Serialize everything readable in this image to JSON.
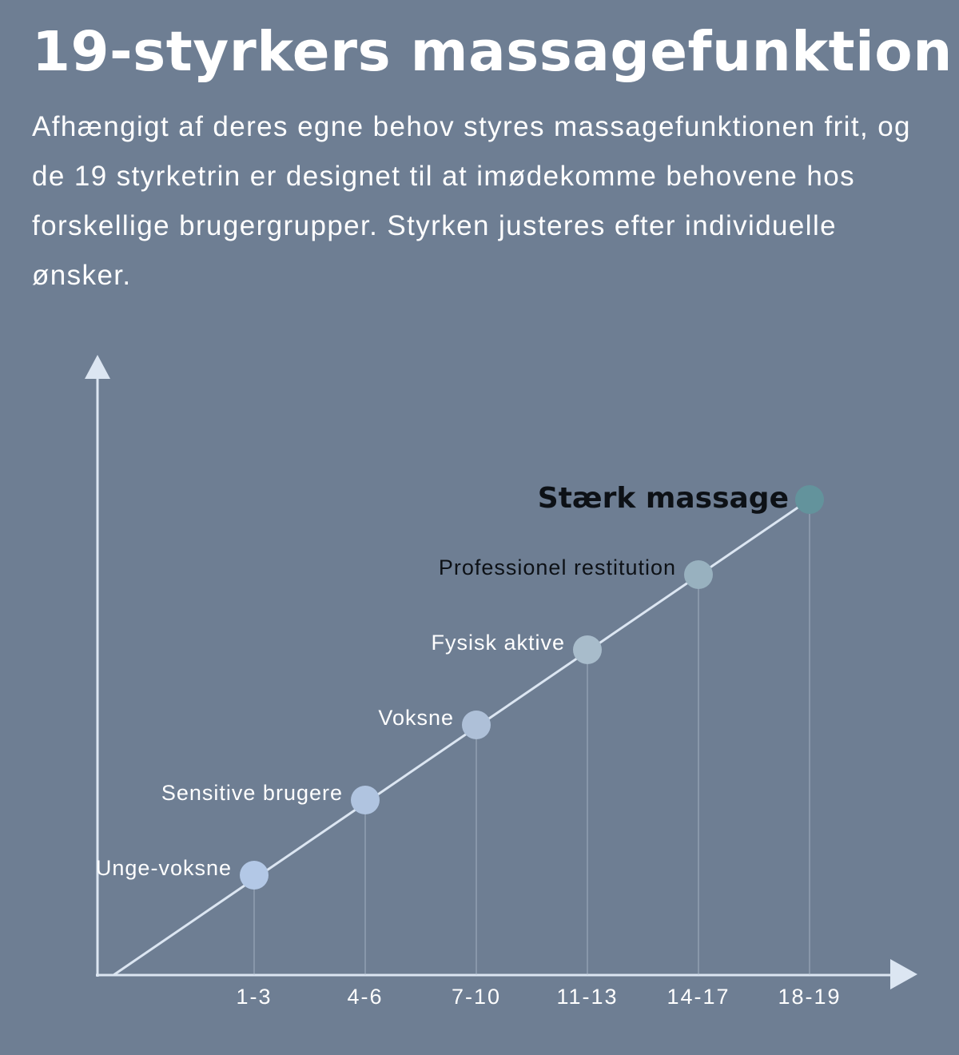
{
  "title": "19-styrkers massagefunktion",
  "description": "Afhængigt af deres egne behov styres massagefunktionen frit, og de 19 styrketrin er designet til at imødekomme behovene hos forskellige brugergrupper. Styrken justeres efter individuelle ønsker.",
  "chart_data": {
    "type": "line",
    "categories": [
      "1-3",
      "4-6",
      "7-10",
      "11-13",
      "14-17",
      "18-19"
    ],
    "labels": [
      "Unge-voksne",
      "Sensitive brugere",
      "Voksne",
      "Fysisk aktive",
      "Professionel restitution",
      "Stærk massage"
    ],
    "values": [
      1,
      2,
      3,
      4,
      5,
      6
    ],
    "grid": false,
    "colors": {
      "background": "#6e7e93",
      "axis": "#dce6f2",
      "line": "#dce6f2",
      "points": [
        "#b3c8e6",
        "#b0c4e0",
        "#aec0d8",
        "#a8bccb",
        "#98b1bf",
        "#63939c"
      ]
    }
  }
}
